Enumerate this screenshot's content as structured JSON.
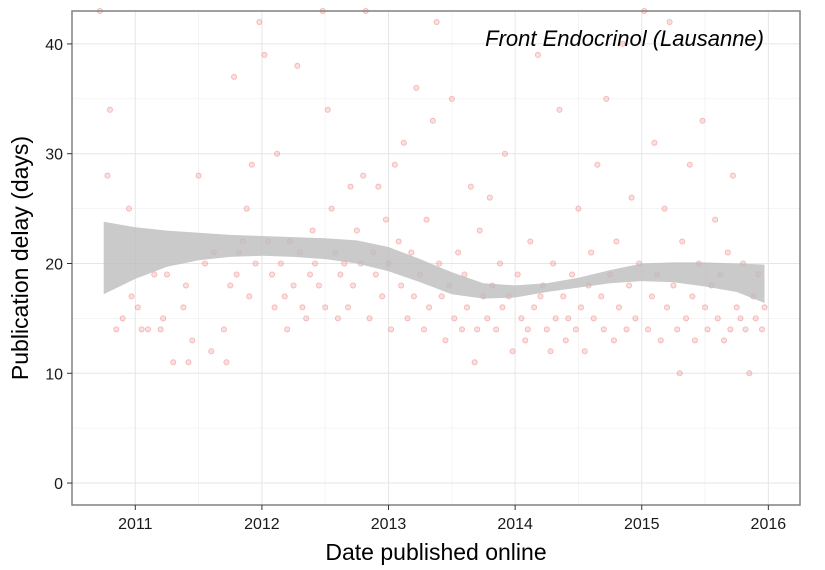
{
  "chart_data": {
    "type": "scatter",
    "title": "",
    "annotation": "Front Endocrinol (Lausanne)",
    "xlabel": "Date published online",
    "ylabel": "Publication delay (days)",
    "x_unit": "year",
    "xlim": [
      2010.5,
      2016.25
    ],
    "ylim": [
      -2,
      43
    ],
    "x_ticks": [
      "2011",
      "2012",
      "2013",
      "2014",
      "2015",
      "2016"
    ],
    "y_ticks": [
      "0",
      "10",
      "20",
      "30",
      "40"
    ],
    "grid": true,
    "point_color": "#f08080",
    "band_color": "#bdbdbd",
    "smooth_band": {
      "x": [
        2010.75,
        2011.0,
        2011.25,
        2011.5,
        2011.75,
        2012.0,
        2012.25,
        2012.5,
        2012.75,
        2013.0,
        2013.25,
        2013.5,
        2013.75,
        2014.0,
        2014.25,
        2014.5,
        2014.75,
        2015.0,
        2015.25,
        2015.5,
        2015.75,
        2015.97
      ],
      "lower": [
        17.2,
        18.6,
        19.7,
        20.3,
        20.6,
        20.7,
        20.6,
        20.4,
        20.0,
        19.3,
        18.3,
        17.2,
        16.8,
        16.9,
        17.4,
        17.8,
        18.2,
        18.4,
        18.3,
        17.9,
        17.4,
        16.4
      ],
      "upper": [
        23.8,
        23.3,
        23.0,
        22.8,
        22.6,
        22.5,
        22.4,
        22.3,
        22.1,
        21.5,
        20.4,
        19.2,
        18.2,
        18.0,
        18.2,
        18.7,
        19.4,
        20.0,
        20.1,
        20.1,
        20.0,
        19.9
      ]
    },
    "points": [
      [
        2010.72,
        43
      ],
      [
        2010.78,
        28
      ],
      [
        2010.8,
        34
      ],
      [
        2010.85,
        14
      ],
      [
        2010.9,
        15
      ],
      [
        2010.95,
        25
      ],
      [
        2010.97,
        17
      ],
      [
        2011.02,
        16
      ],
      [
        2011.05,
        14
      ],
      [
        2011.1,
        14
      ],
      [
        2011.15,
        19
      ],
      [
        2011.2,
        14
      ],
      [
        2011.22,
        15
      ],
      [
        2011.25,
        19
      ],
      [
        2011.3,
        11
      ],
      [
        2011.38,
        16
      ],
      [
        2011.4,
        18
      ],
      [
        2011.42,
        11
      ],
      [
        2011.45,
        13
      ],
      [
        2011.5,
        28
      ],
      [
        2011.55,
        20
      ],
      [
        2011.6,
        12
      ],
      [
        2011.62,
        21
      ],
      [
        2011.7,
        14
      ],
      [
        2011.72,
        11
      ],
      [
        2011.75,
        18
      ],
      [
        2011.78,
        37
      ],
      [
        2011.8,
        19
      ],
      [
        2011.82,
        21
      ],
      [
        2011.85,
        22
      ],
      [
        2011.88,
        25
      ],
      [
        2011.9,
        17
      ],
      [
        2011.92,
        29
      ],
      [
        2011.95,
        20
      ],
      [
        2011.98,
        42
      ],
      [
        2012.02,
        39
      ],
      [
        2012.05,
        22
      ],
      [
        2012.08,
        19
      ],
      [
        2012.1,
        16
      ],
      [
        2012.12,
        30
      ],
      [
        2012.15,
        20
      ],
      [
        2012.18,
        17
      ],
      [
        2012.2,
        14
      ],
      [
        2012.22,
        22
      ],
      [
        2012.25,
        18
      ],
      [
        2012.28,
        38
      ],
      [
        2012.3,
        21
      ],
      [
        2012.32,
        16
      ],
      [
        2012.35,
        15
      ],
      [
        2012.38,
        19
      ],
      [
        2012.4,
        23
      ],
      [
        2012.42,
        20
      ],
      [
        2012.45,
        18
      ],
      [
        2012.48,
        43
      ],
      [
        2012.5,
        16
      ],
      [
        2012.52,
        34
      ],
      [
        2012.55,
        25
      ],
      [
        2012.58,
        21
      ],
      [
        2012.6,
        15
      ],
      [
        2012.62,
        19
      ],
      [
        2012.65,
        20
      ],
      [
        2012.68,
        16
      ],
      [
        2012.7,
        27
      ],
      [
        2012.72,
        18
      ],
      [
        2012.75,
        23
      ],
      [
        2012.78,
        20
      ],
      [
        2012.8,
        28
      ],
      [
        2012.82,
        43
      ],
      [
        2012.85,
        15
      ],
      [
        2012.88,
        21
      ],
      [
        2012.9,
        19
      ],
      [
        2012.92,
        27
      ],
      [
        2012.95,
        17
      ],
      [
        2012.98,
        24
      ],
      [
        2013.0,
        20
      ],
      [
        2013.02,
        14
      ],
      [
        2013.05,
        29
      ],
      [
        2013.08,
        22
      ],
      [
        2013.1,
        18
      ],
      [
        2013.12,
        31
      ],
      [
        2013.15,
        15
      ],
      [
        2013.18,
        21
      ],
      [
        2013.2,
        17
      ],
      [
        2013.22,
        36
      ],
      [
        2013.25,
        19
      ],
      [
        2013.28,
        14
      ],
      [
        2013.3,
        24
      ],
      [
        2013.32,
        16
      ],
      [
        2013.35,
        33
      ],
      [
        2013.38,
        42
      ],
      [
        2013.4,
        20
      ],
      [
        2013.42,
        17
      ],
      [
        2013.45,
        13
      ],
      [
        2013.48,
        18
      ],
      [
        2013.5,
        35
      ],
      [
        2013.52,
        15
      ],
      [
        2013.55,
        21
      ],
      [
        2013.58,
        14
      ],
      [
        2013.6,
        19
      ],
      [
        2013.62,
        16
      ],
      [
        2013.65,
        27
      ],
      [
        2013.68,
        11
      ],
      [
        2013.7,
        14
      ],
      [
        2013.72,
        23
      ],
      [
        2013.75,
        17
      ],
      [
        2013.78,
        15
      ],
      [
        2013.8,
        26
      ],
      [
        2013.82,
        18
      ],
      [
        2013.85,
        14
      ],
      [
        2013.88,
        20
      ],
      [
        2013.9,
        16
      ],
      [
        2013.92,
        30
      ],
      [
        2013.95,
        17
      ],
      [
        2013.98,
        12
      ],
      [
        2014.02,
        19
      ],
      [
        2014.05,
        15
      ],
      [
        2014.08,
        13
      ],
      [
        2014.1,
        14
      ],
      [
        2014.12,
        22
      ],
      [
        2014.15,
        16
      ],
      [
        2014.18,
        39
      ],
      [
        2014.2,
        17
      ],
      [
        2014.22,
        18
      ],
      [
        2014.25,
        14
      ],
      [
        2014.28,
        12
      ],
      [
        2014.3,
        20
      ],
      [
        2014.32,
        15
      ],
      [
        2014.35,
        34
      ],
      [
        2014.38,
        17
      ],
      [
        2014.4,
        13
      ],
      [
        2014.42,
        15
      ],
      [
        2014.45,
        19
      ],
      [
        2014.48,
        14
      ],
      [
        2014.5,
        25
      ],
      [
        2014.52,
        16
      ],
      [
        2014.55,
        12
      ],
      [
        2014.58,
        18
      ],
      [
        2014.6,
        21
      ],
      [
        2014.62,
        15
      ],
      [
        2014.65,
        29
      ],
      [
        2014.68,
        17
      ],
      [
        2014.7,
        14
      ],
      [
        2014.72,
        35
      ],
      [
        2014.75,
        19
      ],
      [
        2014.78,
        13
      ],
      [
        2014.8,
        22
      ],
      [
        2014.82,
        16
      ],
      [
        2014.85,
        40
      ],
      [
        2014.88,
        14
      ],
      [
        2014.9,
        18
      ],
      [
        2014.92,
        26
      ],
      [
        2014.95,
        15
      ],
      [
        2014.98,
        20
      ],
      [
        2015.02,
        43
      ],
      [
        2015.05,
        14
      ],
      [
        2015.08,
        17
      ],
      [
        2015.1,
        31
      ],
      [
        2015.12,
        19
      ],
      [
        2015.15,
        13
      ],
      [
        2015.18,
        25
      ],
      [
        2015.2,
        16
      ],
      [
        2015.22,
        42
      ],
      [
        2015.25,
        18
      ],
      [
        2015.28,
        14
      ],
      [
        2015.3,
        10
      ],
      [
        2015.32,
        22
      ],
      [
        2015.35,
        15
      ],
      [
        2015.38,
        29
      ],
      [
        2015.4,
        17
      ],
      [
        2015.42,
        13
      ],
      [
        2015.45,
        20
      ],
      [
        2015.48,
        33
      ],
      [
        2015.5,
        16
      ],
      [
        2015.52,
        14
      ],
      [
        2015.55,
        18
      ],
      [
        2015.58,
        24
      ],
      [
        2015.6,
        15
      ],
      [
        2015.62,
        19
      ],
      [
        2015.65,
        13
      ],
      [
        2015.68,
        21
      ],
      [
        2015.7,
        14
      ],
      [
        2015.72,
        28
      ],
      [
        2015.75,
        16
      ],
      [
        2015.78,
        15
      ],
      [
        2015.8,
        20
      ],
      [
        2015.82,
        14
      ],
      [
        2015.85,
        10
      ],
      [
        2015.88,
        17
      ],
      [
        2015.9,
        15
      ],
      [
        2015.92,
        19
      ],
      [
        2015.95,
        14
      ],
      [
        2015.97,
        16
      ]
    ]
  }
}
